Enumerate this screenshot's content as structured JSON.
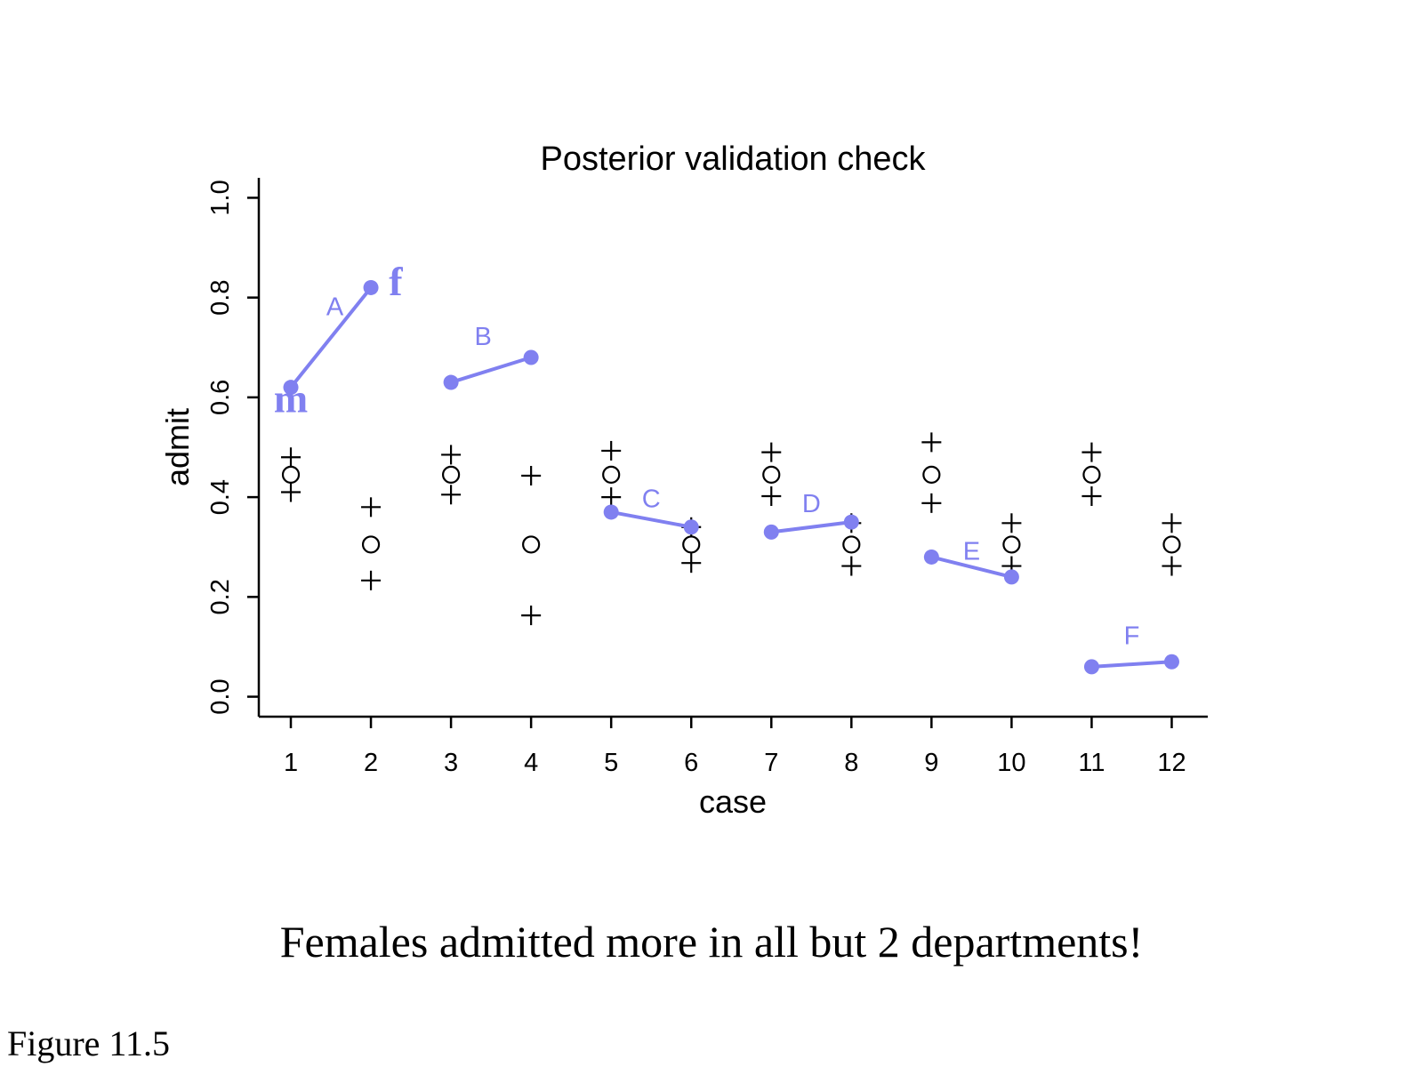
{
  "chart_data": {
    "type": "scatter",
    "title": "Posterior validation check",
    "xlabel": "case",
    "ylabel": "admit",
    "xlim": [
      0.6,
      12.45
    ],
    "ylim": [
      -0.04,
      1.04
    ],
    "x_ticks": [
      "1",
      "2",
      "3",
      "4",
      "5",
      "6",
      "7",
      "8",
      "9",
      "10",
      "11",
      "12"
    ],
    "y_ticks": [
      "0.0",
      "0.2",
      "0.4",
      "0.6",
      "0.8",
      "1.0"
    ],
    "observed": {
      "color": "#8080f0",
      "departments": [
        {
          "label": "A",
          "cases": [
            1,
            2
          ],
          "values": [
            0.62,
            0.82
          ]
        },
        {
          "label": "B",
          "cases": [
            3,
            4
          ],
          "values": [
            0.63,
            0.68
          ]
        },
        {
          "label": "C",
          "cases": [
            5,
            6
          ],
          "values": [
            0.37,
            0.34
          ]
        },
        {
          "label": "D",
          "cases": [
            7,
            8
          ],
          "values": [
            0.33,
            0.35
          ]
        },
        {
          "label": "E",
          "cases": [
            9,
            10
          ],
          "values": [
            0.28,
            0.24
          ]
        },
        {
          "label": "F",
          "cases": [
            11,
            12
          ],
          "values": [
            0.06,
            0.07
          ]
        }
      ],
      "sex_labels": {
        "male": "m",
        "female": "f"
      }
    },
    "predicted": {
      "mean": [
        0.445,
        0.305,
        0.445,
        0.305,
        0.445,
        0.305,
        0.445,
        0.305,
        0.445,
        0.305,
        0.445,
        0.305
      ],
      "lower": [
        0.41,
        0.233,
        0.405,
        0.163,
        0.4,
        0.268,
        0.402,
        0.262,
        0.388,
        0.262,
        0.402,
        0.262
      ],
      "upper": [
        0.48,
        0.38,
        0.485,
        0.443,
        0.493,
        0.34,
        0.49,
        0.348,
        0.51,
        0.348,
        0.49,
        0.348
      ]
    }
  },
  "caption": "Females admitted more in all but 2 departments!",
  "figure_label": "Figure 11.5"
}
